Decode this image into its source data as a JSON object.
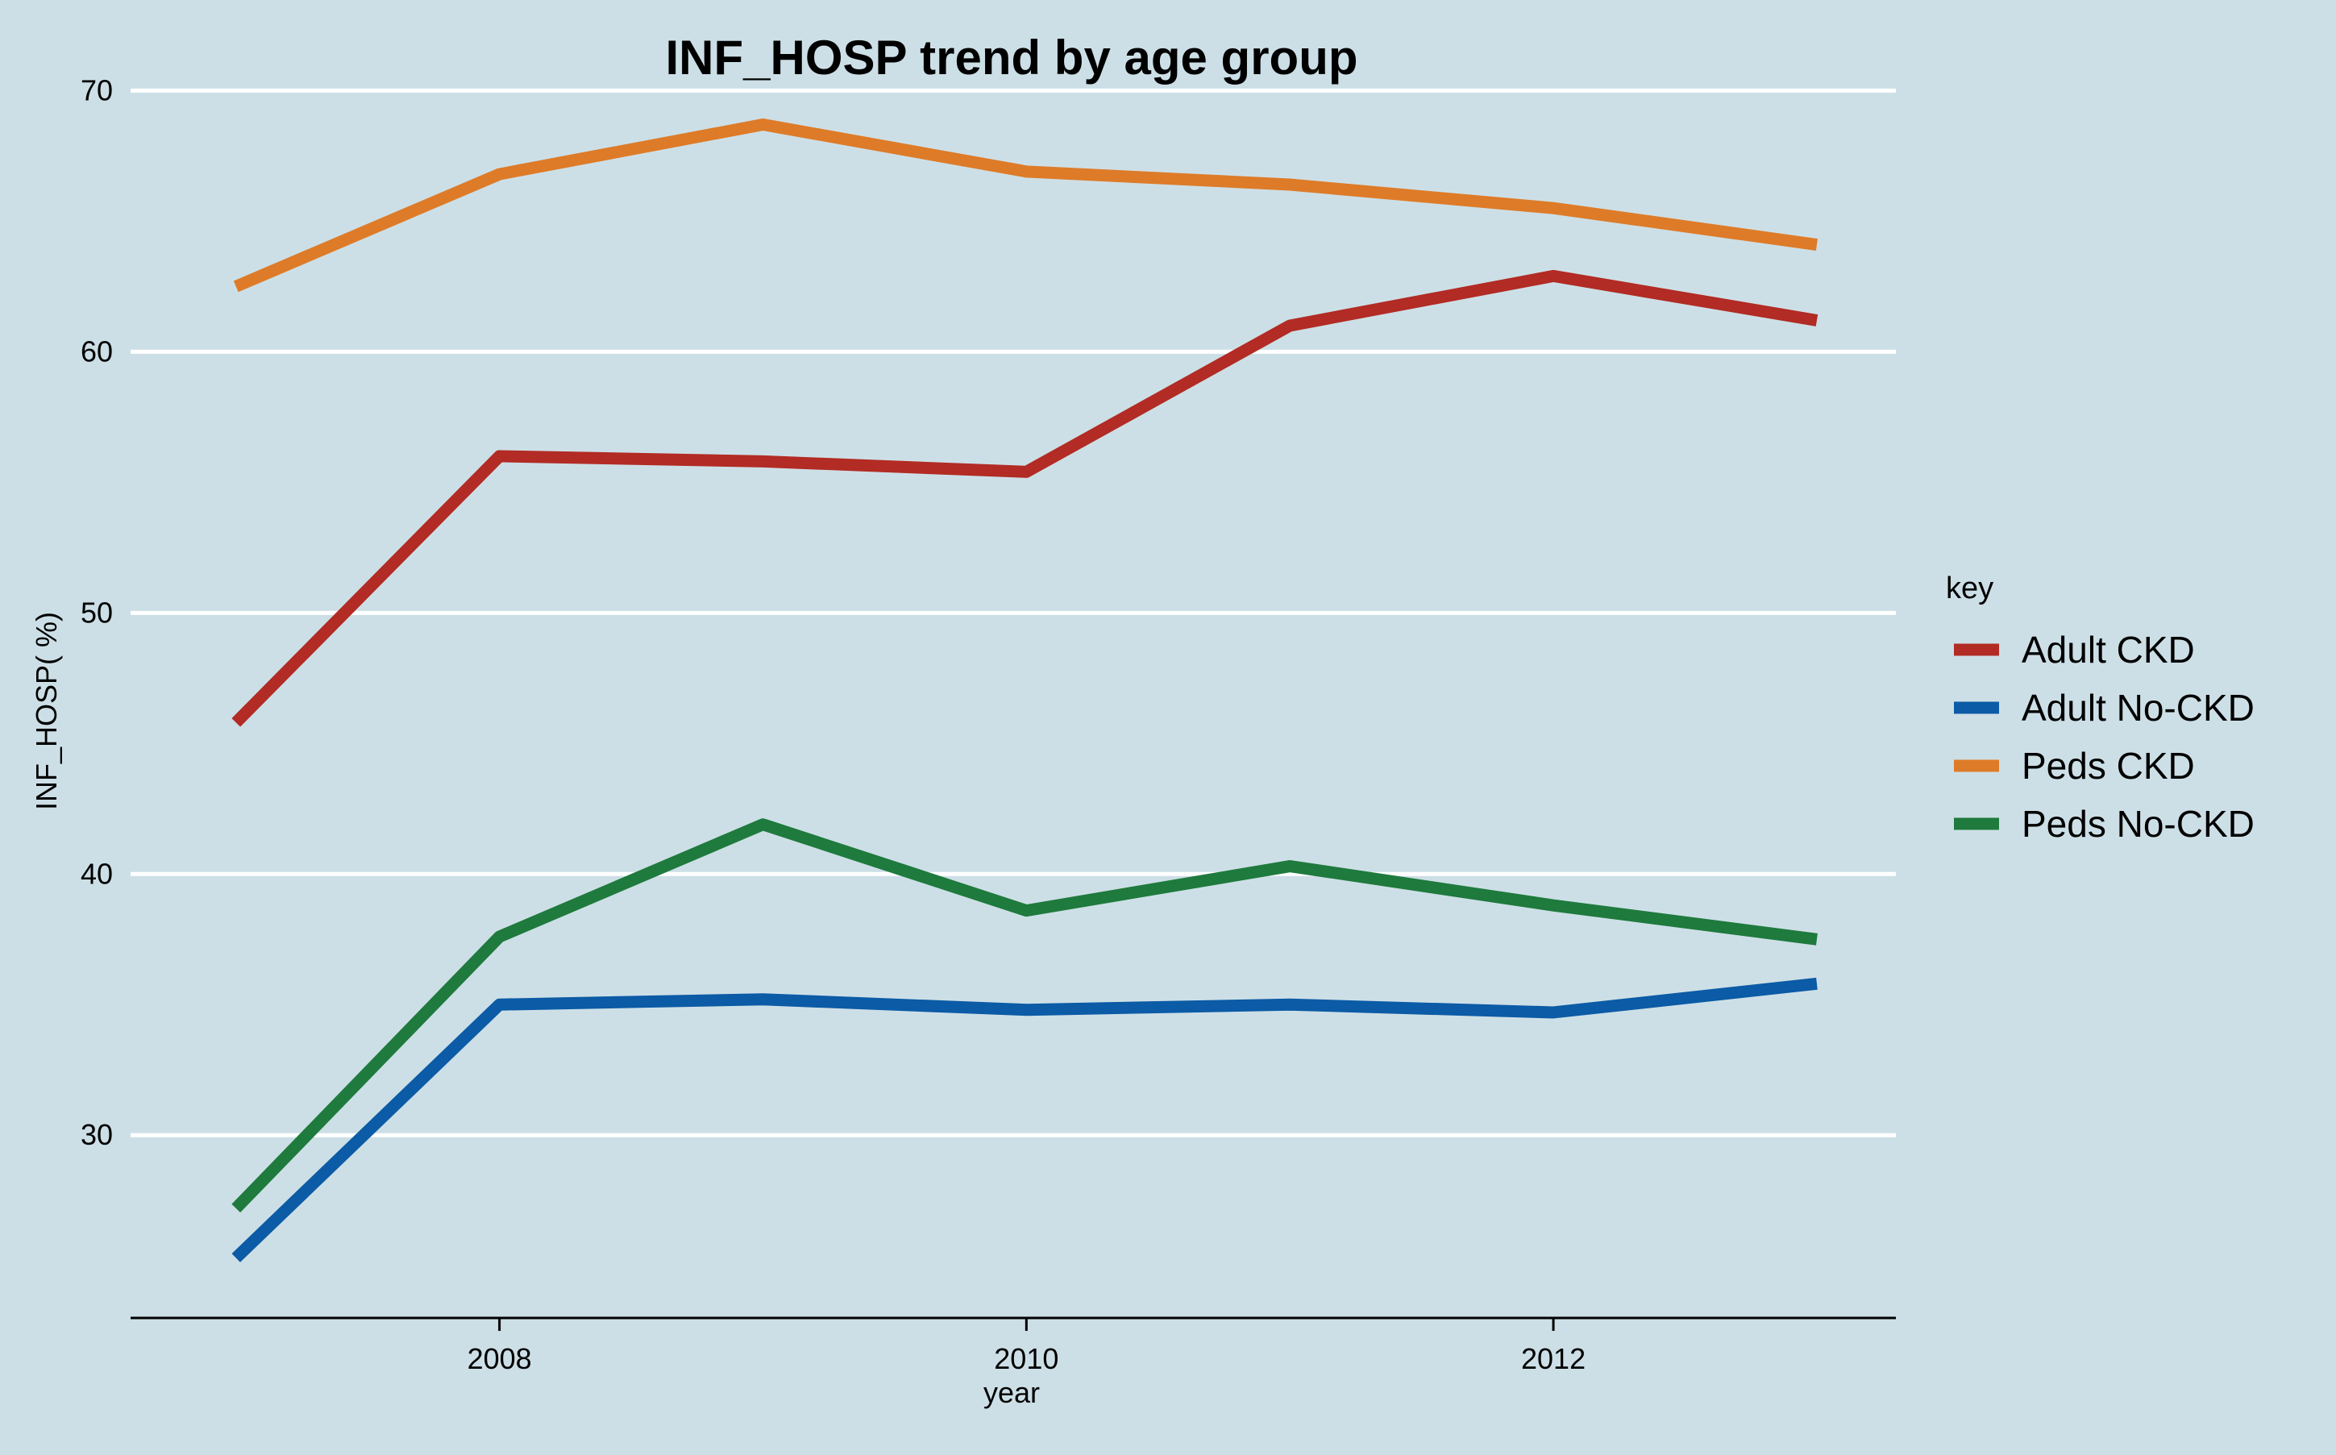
{
  "chart_data": {
    "type": "line",
    "title": "INF_HOSP trend by age group",
    "xlabel": "year",
    "ylabel": "INF_HOSP( %)",
    "x": [
      2007,
      2008,
      2009,
      2010,
      2011,
      2012,
      2013
    ],
    "x_ticks": [
      2008,
      2010,
      2012
    ],
    "xlim": [
      2006.6,
      2013.3
    ],
    "y_ticks": [
      30,
      40,
      50,
      60,
      70
    ],
    "ylim": [
      23.0,
      71.0
    ],
    "grid": "horizontal",
    "legend": {
      "title": "key",
      "placement": "right"
    },
    "series": [
      {
        "name": "Adult CKD",
        "color": "#b22b24",
        "values": [
          45.8,
          56.0,
          55.8,
          55.4,
          61.0,
          62.9,
          61.2
        ]
      },
      {
        "name": "Adult No-CKD",
        "color": "#0b5ba6",
        "values": [
          25.3,
          35.0,
          35.2,
          34.8,
          35.0,
          34.7,
          35.8
        ]
      },
      {
        "name": "Peds CKD",
        "color": "#de7b28",
        "values": [
          62.5,
          66.8,
          68.7,
          66.9,
          66.4,
          65.5,
          64.1
        ]
      },
      {
        "name": "Peds No-CKD",
        "color": "#1e7a3d",
        "values": [
          27.2,
          37.6,
          41.9,
          38.6,
          40.3,
          38.8,
          37.5
        ]
      }
    ]
  }
}
